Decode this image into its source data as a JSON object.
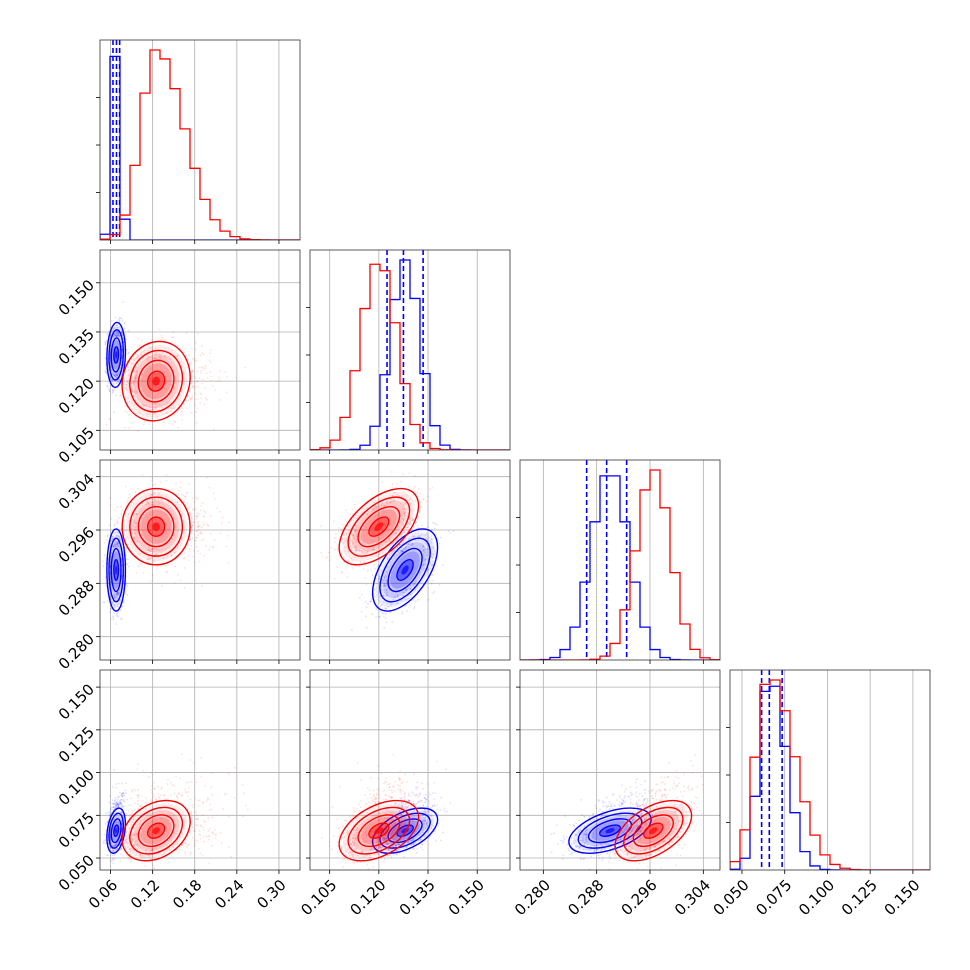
{
  "chart_data": {
    "type": "corner",
    "grid": true,
    "parameters": 4,
    "colors": {
      "A": "#0000ff",
      "B": "#ff0000"
    },
    "axes": [
      {
        "range": [
          0.045,
          0.33
        ],
        "ticks": [
          0.06,
          0.12,
          0.18,
          0.24,
          0.3
        ],
        "tick_labels": [
          "0.06",
          "0.12",
          "0.18",
          "0.24",
          "0.30"
        ]
      },
      {
        "range": [
          0.099,
          0.16
        ],
        "ticks": [
          0.105,
          0.12,
          0.135,
          0.15
        ],
        "tick_labels": [
          "0.105",
          "0.120",
          "0.135",
          "0.150"
        ]
      },
      {
        "range": [
          0.2765,
          0.3065
        ],
        "ticks": [
          0.28,
          0.288,
          0.296,
          0.304
        ],
        "tick_labels": [
          "0.280",
          "0.288",
          "0.296",
          "0.304"
        ]
      },
      {
        "range": [
          0.043,
          0.16
        ],
        "ticks": [
          0.05,
          0.075,
          0.1,
          0.125,
          0.15
        ],
        "tick_labels": [
          "0.050",
          "0.075",
          "0.100",
          "0.125",
          "0.150"
        ]
      }
    ],
    "series": [
      {
        "color": "#0000ff",
        "means": [
          0.068,
          0.128,
          0.29,
          0.066
        ],
        "sds": [
          0.006,
          0.0045,
          0.0028,
          0.006
        ],
        "quantiles": [
          [
            0.0635,
            0.0685,
            0.073
          ],
          [
            0.1225,
            0.1275,
            0.1335
          ],
          [
            0.2865,
            0.2895,
            0.2925
          ],
          [
            0.0615,
            0.066,
            0.0735
          ]
        ],
        "correlations": [
          [
            0,
            1,
            0.1
          ],
          [
            0,
            2,
            0.0
          ],
          [
            0,
            3,
            0.3
          ],
          [
            1,
            2,
            0.55
          ],
          [
            1,
            3,
            0.5
          ],
          [
            2,
            3,
            0.5
          ]
        ]
      },
      {
        "color": "#ff0000",
        "means": [
          0.125,
          0.12,
          0.2965,
          0.066
        ],
        "sds": [
          0.022,
          0.0055,
          0.0026,
          0.008
        ],
        "correlations": [
          [
            0,
            1,
            0.1
          ],
          [
            0,
            2,
            0.0
          ],
          [
            0,
            3,
            0.3
          ],
          [
            1,
            2,
            0.55
          ],
          [
            1,
            3,
            0.45
          ],
          [
            2,
            3,
            0.5
          ]
        ]
      }
    ]
  }
}
